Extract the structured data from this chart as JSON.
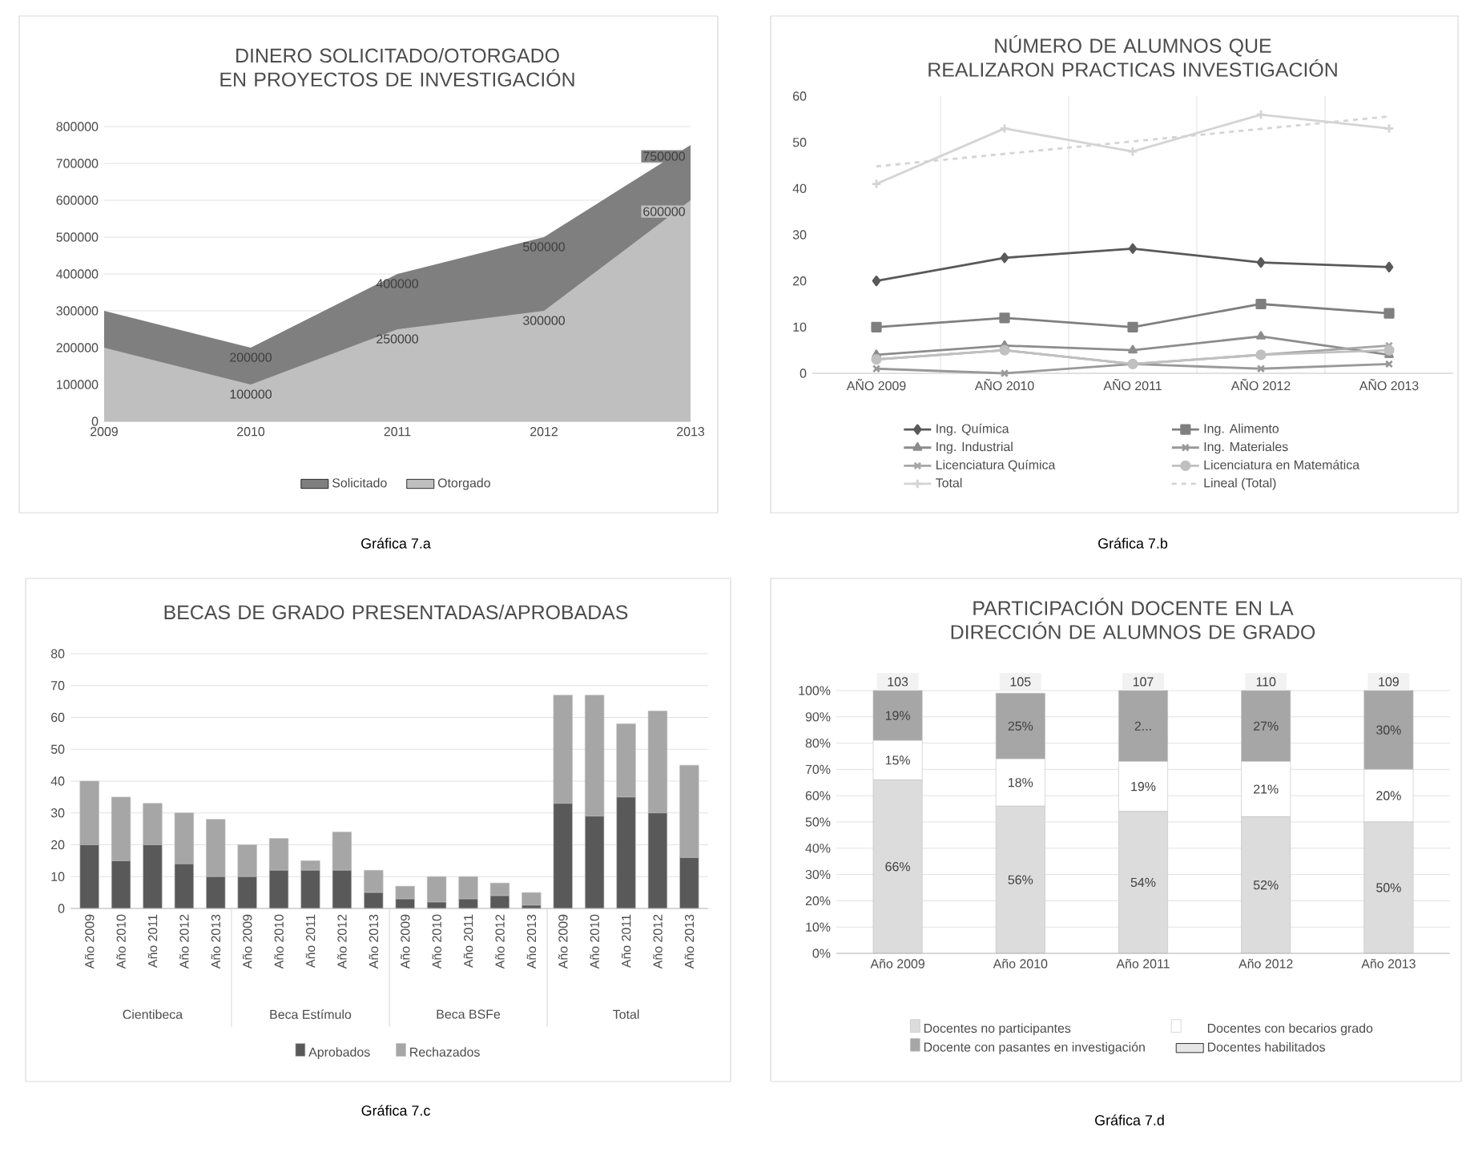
{
  "chart_data": [
    {
      "type": "area",
      "title": "DINERO SOLICITADO/OTORGADO EN PROYECTOS DE INVESTIGACIÓN",
      "categories": [
        "2009",
        "2010",
        "2011",
        "2012",
        "2013"
      ],
      "series": [
        {
          "name": "Solicitado",
          "color": "#7f7f7f",
          "values": [
            300000,
            200000,
            400000,
            500000,
            750000
          ],
          "value_labels": [
            null,
            "200000",
            "400000",
            "500000",
            "750000"
          ]
        },
        {
          "name": "Otorgado",
          "color": "#bfbfbf",
          "values": [
            200000,
            100000,
            250000,
            300000,
            600000
          ],
          "value_labels": [
            null,
            "100000",
            "250000",
            "300000",
            "600000"
          ]
        }
      ],
      "ylim": [
        0,
        800000
      ],
      "yticks": [
        0,
        100000,
        200000,
        300000,
        400000,
        500000,
        600000,
        700000,
        800000
      ],
      "grid": "y",
      "legend": "bottom",
      "annotations": [
        "Gráfica 7.a"
      ]
    },
    {
      "type": "line",
      "title": "NÚMERO DE ALUMNOS QUE REALIZARON PRACTICAS INVESTIGACIÓN",
      "categories": [
        "AÑO 2009",
        "AÑO 2010",
        "AÑO 2011",
        "AÑO 2012",
        "AÑO 2013"
      ],
      "series": [
        {
          "name": "Ing. Química",
          "color": "#595959",
          "marker": "diamond",
          "values": [
            20,
            25,
            27,
            24,
            23
          ]
        },
        {
          "name": "Ing. Alimento",
          "color": "#7f7f7f",
          "marker": "square",
          "values": [
            10,
            12,
            10,
            15,
            13
          ]
        },
        {
          "name": "Ing. Industrial",
          "color": "#8c8c8c",
          "marker": "triangle",
          "values": [
            4,
            6,
            5,
            8,
            4
          ]
        },
        {
          "name": "Ing. Materiales",
          "color": "#999999",
          "marker": "cross",
          "values": [
            1,
            0,
            2,
            1,
            2
          ]
        },
        {
          "name": "Licenciatura Química",
          "color": "#a6a6a6",
          "marker": "cross",
          "values": [
            3,
            5,
            2,
            4,
            6
          ]
        },
        {
          "name": "Licenciatura  en Matemática",
          "color": "#c0c0c0",
          "marker": "circle",
          "values": [
            3,
            5,
            2,
            4,
            5
          ]
        },
        {
          "name": "Total",
          "color": "#d4d4d4",
          "marker": "plus",
          "values": [
            41,
            53,
            48,
            56,
            53
          ]
        },
        {
          "name": "Lineal (Total)",
          "color": "#d4d4d4",
          "marker": "none",
          "line_style": "dashed",
          "values": [
            44.8,
            47.5,
            50.2,
            52.9,
            55.6
          ]
        }
      ],
      "ylim": [
        0,
        60
      ],
      "yticks": [
        0,
        10,
        20,
        30,
        40,
        50,
        60
      ],
      "grid": "x",
      "legend": "bottom",
      "annotations": [
        "Gráfica 7.b"
      ]
    },
    {
      "type": "bar",
      "stacked": true,
      "title": "BECAS DE GRADO PRESENTADAS/APROBADAS",
      "categories": [
        "Año 2009",
        "Año 2010",
        "Año 2011",
        "Año 2012",
        "Año 2013",
        "Año 2009",
        "Año 2010",
        "Año 2011",
        "Año 2012",
        "Año 2013",
        "Año 2009",
        "Año 2010",
        "Año 2011",
        "Año 2012",
        "Año 2013",
        "Año 2009",
        "Año 2010",
        "Año 2011",
        "Año 2012",
        "Año 2013"
      ],
      "series": [
        {
          "name": "Aprobados",
          "color": "#595959",
          "values": [
            20,
            15,
            20,
            14,
            10,
            10,
            12,
            12,
            12,
            5,
            3,
            2,
            3,
            4,
            1,
            33,
            29,
            35,
            30,
            16
          ]
        },
        {
          "name": "Rechazados",
          "color": "#a6a6a6",
          "values": [
            20,
            20,
            13,
            16,
            18,
            10,
            10,
            3,
            12,
            7,
            4,
            8,
            7,
            4,
            4,
            34,
            38,
            23,
            32,
            29
          ]
        }
      ],
      "ylim": [
        0,
        80
      ],
      "yticks": [
        0,
        10,
        20,
        30,
        40,
        50,
        60,
        70,
        80
      ],
      "grid": "y",
      "legend": "bottom",
      "annotations": [
        "Cientibeca",
        "Beca Estímulo",
        "Beca BSFe",
        "Total",
        "Gráfica 7.c"
      ]
    },
    {
      "type": "bar",
      "stacked": true,
      "title": "PARTICIPACIÓN DOCENTE EN LA DIRECCIÓN DE ALUMNOS DE GRADO",
      "categories": [
        "Año 2009",
        "Año 2010",
        "Año 2011",
        "Año 2012",
        "Año 2013"
      ],
      "series": [
        {
          "name": "Docentes no participantes",
          "color": "#dcdcdc",
          "values": [
            66,
            56,
            54,
            52,
            50
          ],
          "value_labels": [
            "66%",
            "56%",
            "54%",
            "52%",
            "50%"
          ]
        },
        {
          "name": "Docentes con becarios grado",
          "color": "#ffffff",
          "values": [
            15,
            18,
            19,
            21,
            20
          ],
          "value_labels": [
            "15%",
            "18%",
            "19%",
            "21%",
            "20%"
          ]
        },
        {
          "name": "Docente con pasantes en investigación",
          "color": "#a6a6a6",
          "values": [
            19,
            25,
            27,
            27,
            30
          ],
          "value_labels": [
            "19%",
            "25%",
            "2...",
            "27%",
            "30%"
          ]
        },
        {
          "name": "Docentes habilitados",
          "color": "#e6e6e6",
          "values": [
            null,
            null,
            null,
            null,
            null
          ]
        }
      ],
      "ylim": [
        0,
        100
      ],
      "yticks": [
        {
          "value": 0,
          "label": "0%"
        },
        {
          "value": 10,
          "label": "10%"
        },
        {
          "value": 20,
          "label": "20%"
        },
        {
          "value": 30,
          "label": "30%"
        },
        {
          "value": 40,
          "label": "40%"
        },
        {
          "value": 50,
          "label": "50%"
        },
        {
          "value": 60,
          "label": "60%"
        },
        {
          "value": 70,
          "label": "70%"
        },
        {
          "value": 80,
          "label": "80%"
        },
        {
          "value": 90,
          "label": "90%"
        },
        {
          "value": 100,
          "label": "100%"
        }
      ],
      "grid": "y",
      "legend": "bottom",
      "annotations": [
        {
          "text": "103",
          "x": "Año 2009",
          "y": 100
        },
        {
          "text": "105",
          "x": "Año 2010",
          "y": 100
        },
        {
          "text": "107",
          "x": "Año 2011",
          "y": 100
        },
        {
          "text": "110",
          "x": "Año 2012",
          "y": 100
        },
        {
          "text": "109",
          "x": "Año 2013",
          "y": 100
        },
        "Gráfica 7.d"
      ]
    }
  ]
}
